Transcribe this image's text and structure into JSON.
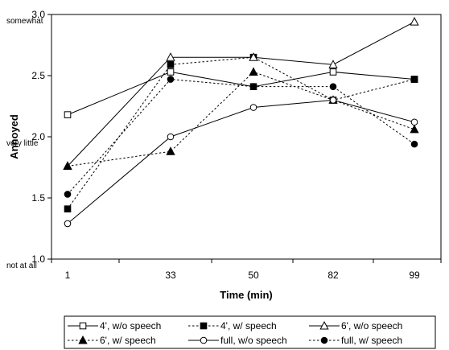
{
  "chart_data": {
    "type": "line",
    "xlabel": "Time (min)",
    "ylabel": "Annoyed",
    "ylim": [
      1.0,
      3.0
    ],
    "yticks": [
      "1.0",
      "1.5",
      "2.0",
      "2.5",
      "3.0"
    ],
    "categories": [
      "1",
      "33",
      "50",
      "82",
      "99"
    ],
    "annotations": [
      {
        "text": "somewhat",
        "y": 3.0
      },
      {
        "text": "very little",
        "y": 2.0
      },
      {
        "text": "not at all",
        "y": 1.0
      }
    ],
    "grid": false,
    "legend_position": "bottom",
    "series": [
      {
        "name": "4', w/o speech",
        "style": "solid",
        "marker": "square",
        "filled": false,
        "values": [
          2.18,
          2.53,
          2.41,
          2.53,
          2.47
        ]
      },
      {
        "name": "4', w/ speech",
        "style": "dotted",
        "marker": "square",
        "filled": true,
        "values": [
          1.41,
          2.59,
          2.65,
          2.3,
          2.47
        ]
      },
      {
        "name": "6', w/o speech",
        "style": "solid",
        "marker": "triangle",
        "filled": false,
        "values": [
          1.76,
          2.65,
          2.65,
          2.59,
          2.94
        ]
      },
      {
        "name": "6', w/ speech",
        "style": "dotted",
        "marker": "triangle",
        "filled": true,
        "values": [
          1.76,
          1.88,
          2.53,
          2.3,
          2.06
        ]
      },
      {
        "name": "full, w/o speech",
        "style": "solid",
        "marker": "circle",
        "filled": false,
        "values": [
          1.29,
          2.0,
          2.24,
          2.3,
          2.12
        ]
      },
      {
        "name": "full, w/ speech",
        "style": "dotted",
        "marker": "circle",
        "filled": true,
        "values": [
          1.53,
          2.47,
          2.41,
          2.41,
          1.94
        ]
      }
    ]
  }
}
